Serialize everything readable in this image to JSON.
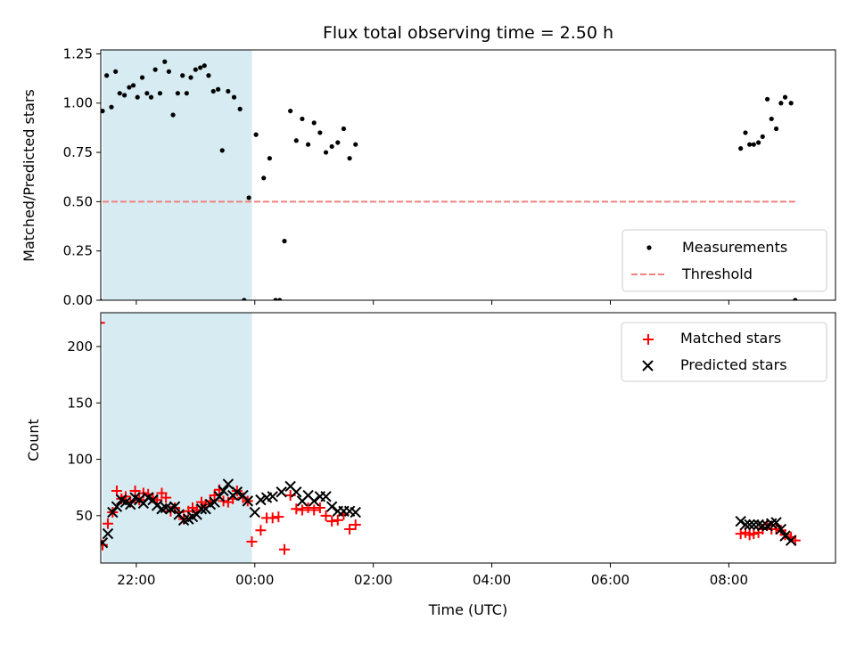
{
  "chart_data": [
    {
      "type": "scatter",
      "title": "Flux total observing time = 2.50 h",
      "xlabel": "",
      "ylabel": "Matched/Predicted stars",
      "x_unit": "hours since 2024-01-01 00:00 UTC",
      "xlim": [
        -2.6,
        9.8
      ],
      "ylim": [
        0,
        1.27
      ],
      "yticks": [
        0.0,
        0.25,
        0.5,
        0.75,
        1.0,
        1.25
      ],
      "ytick_labels": [
        "0.00",
        "0.25",
        "0.50",
        "0.75",
        "1.00",
        "1.25"
      ],
      "xticks": [
        -2,
        0,
        2,
        4,
        6,
        8
      ],
      "xtick_labels": [
        "",
        "",
        "",
        "",
        "",
        ""
      ],
      "grid": false,
      "legend": "bottom-right",
      "shaded_interval": {
        "from": -2.57,
        "to": -0.05,
        "color": "#add8e6"
      },
      "series": [
        {
          "name": "Measurements",
          "marker": "dot",
          "color": "#000000",
          "points": [
            [
              -2.62,
              0.0
            ],
            [
              -2.57,
              0.96
            ],
            [
              -2.5,
              1.14
            ],
            [
              -2.42,
              0.98
            ],
            [
              -2.35,
              1.16
            ],
            [
              -2.28,
              1.05
            ],
            [
              -2.2,
              1.04
            ],
            [
              -2.12,
              1.08
            ],
            [
              -2.05,
              1.09
            ],
            [
              -1.98,
              1.03
            ],
            [
              -1.9,
              1.13
            ],
            [
              -1.82,
              1.05
            ],
            [
              -1.75,
              1.03
            ],
            [
              -1.68,
              1.17
            ],
            [
              -1.6,
              1.05
            ],
            [
              -1.52,
              1.21
            ],
            [
              -1.45,
              1.16
            ],
            [
              -1.38,
              0.94
            ],
            [
              -1.3,
              1.05
            ],
            [
              -1.22,
              1.14
            ],
            [
              -1.15,
              1.05
            ],
            [
              -1.08,
              1.13
            ],
            [
              -1.0,
              1.17
            ],
            [
              -0.92,
              1.18
            ],
            [
              -0.85,
              1.19
            ],
            [
              -0.78,
              1.14
            ],
            [
              -0.7,
              1.06
            ],
            [
              -0.62,
              1.07
            ],
            [
              -0.55,
              0.76
            ],
            [
              -0.45,
              1.06
            ],
            [
              -0.35,
              1.03
            ],
            [
              -0.25,
              0.97
            ],
            [
              -0.18,
              0.0
            ],
            [
              -0.1,
              0.52
            ],
            [
              0.02,
              0.84
            ],
            [
              0.15,
              0.62
            ],
            [
              0.25,
              0.72
            ],
            [
              0.35,
              0.0
            ],
            [
              0.42,
              0.0
            ],
            [
              0.5,
              0.3
            ],
            [
              0.6,
              0.96
            ],
            [
              0.7,
              0.81
            ],
            [
              0.8,
              0.92
            ],
            [
              0.9,
              0.79
            ],
            [
              1.0,
              0.9
            ],
            [
              1.1,
              0.85
            ],
            [
              1.2,
              0.75
            ],
            [
              1.3,
              0.78
            ],
            [
              1.4,
              0.8
            ],
            [
              1.5,
              0.87
            ],
            [
              1.6,
              0.72
            ],
            [
              1.7,
              0.79
            ],
            [
              8.2,
              0.77
            ],
            [
              8.28,
              0.85
            ],
            [
              8.35,
              0.79
            ],
            [
              8.42,
              0.79
            ],
            [
              8.5,
              0.8
            ],
            [
              8.57,
              0.83
            ],
            [
              8.65,
              1.02
            ],
            [
              8.72,
              0.92
            ],
            [
              8.8,
              0.87
            ],
            [
              8.88,
              1.0
            ],
            [
              8.95,
              1.03
            ],
            [
              9.05,
              1.0
            ],
            [
              9.12,
              0.0
            ]
          ]
        },
        {
          "name": "Threshold",
          "marker": "dashed-line",
          "color": "#f08080",
          "points": [
            [
              -2.57,
              0.5
            ],
            [
              9.12,
              0.5
            ]
          ]
        }
      ]
    },
    {
      "type": "scatter",
      "title": "",
      "xlabel": "Time (UTC)",
      "ylabel": "Count",
      "x_unit": "hours since 2024-01-01 00:00 UTC",
      "xlim": [
        -2.6,
        9.8
      ],
      "ylim": [
        8,
        230
      ],
      "yticks": [
        50,
        100,
        150,
        200
      ],
      "ytick_labels": [
        "50",
        "100",
        "150",
        "200"
      ],
      "xticks": [
        -2,
        0,
        2,
        4,
        6,
        8
      ],
      "xtick_labels": [
        "22:00",
        "00:00",
        "02:00",
        "04:00",
        "06:00",
        "08:00"
      ],
      "grid": false,
      "legend": "top-right",
      "shaded_interval": {
        "from": -2.57,
        "to": -0.05,
        "color": "#add8e6"
      },
      "series": [
        {
          "name": "Matched stars",
          "marker": "plus",
          "color": "#ff0000",
          "points": [
            [
              -2.62,
              221
            ],
            [
              -2.57,
              24
            ],
            [
              -2.48,
              43
            ],
            [
              -2.4,
              53
            ],
            [
              -2.33,
              72
            ],
            [
              -2.25,
              65
            ],
            [
              -2.18,
              67
            ],
            [
              -2.1,
              62
            ],
            [
              -2.02,
              72
            ],
            [
              -1.95,
              64
            ],
            [
              -1.88,
              70
            ],
            [
              -1.8,
              69
            ],
            [
              -1.72,
              66
            ],
            [
              -1.65,
              64
            ],
            [
              -1.57,
              70
            ],
            [
              -1.5,
              66
            ],
            [
              -1.42,
              54
            ],
            [
              -1.35,
              57
            ],
            [
              -1.28,
              53
            ],
            [
              -1.2,
              47
            ],
            [
              -1.12,
              54
            ],
            [
              -1.05,
              57
            ],
            [
              -0.98,
              55
            ],
            [
              -0.9,
              62
            ],
            [
              -0.83,
              60
            ],
            [
              -0.75,
              63
            ],
            [
              -0.68,
              68
            ],
            [
              -0.6,
              73
            ],
            [
              -0.53,
              63
            ],
            [
              -0.45,
              62
            ],
            [
              -0.37,
              65
            ],
            [
              -0.3,
              72
            ],
            [
              -0.2,
              66
            ],
            [
              -0.12,
              63
            ],
            [
              -0.05,
              27
            ],
            [
              0.1,
              37
            ],
            [
              0.2,
              48
            ],
            [
              0.3,
              48
            ],
            [
              0.4,
              49
            ],
            [
              0.5,
              20
            ],
            [
              0.6,
              68
            ],
            [
              0.7,
              56
            ],
            [
              0.8,
              55
            ],
            [
              0.9,
              57
            ],
            [
              1.0,
              55
            ],
            [
              1.1,
              57
            ],
            [
              1.2,
              50
            ],
            [
              1.3,
              45
            ],
            [
              1.4,
              46
            ],
            [
              1.5,
              51
            ],
            [
              1.6,
              38
            ],
            [
              1.7,
              42
            ],
            [
              8.2,
              34
            ],
            [
              8.28,
              35
            ],
            [
              8.35,
              33
            ],
            [
              8.42,
              34
            ],
            [
              8.5,
              35
            ],
            [
              8.57,
              38
            ],
            [
              8.65,
              42
            ],
            [
              8.72,
              38
            ],
            [
              8.8,
              38
            ],
            [
              8.88,
              37
            ],
            [
              8.95,
              33
            ],
            [
              9.05,
              31
            ],
            [
              9.12,
              28
            ]
          ]
        },
        {
          "name": "Predicted stars",
          "marker": "x",
          "color": "#000000",
          "points": [
            [
              -2.57,
              26
            ],
            [
              -2.48,
              34
            ],
            [
              -2.4,
              53
            ],
            [
              -2.33,
              58
            ],
            [
              -2.25,
              64
            ],
            [
              -2.18,
              62
            ],
            [
              -2.1,
              60
            ],
            [
              -2.02,
              66
            ],
            [
              -1.95,
              64
            ],
            [
              -1.88,
              61
            ],
            [
              -1.8,
              66
            ],
            [
              -1.72,
              64
            ],
            [
              -1.65,
              59
            ],
            [
              -1.57,
              56
            ],
            [
              -1.5,
              57
            ],
            [
              -1.42,
              56
            ],
            [
              -1.35,
              58
            ],
            [
              -1.28,
              51
            ],
            [
              -1.2,
              46
            ],
            [
              -1.12,
              47
            ],
            [
              -1.05,
              49
            ],
            [
              -0.98,
              51
            ],
            [
              -0.9,
              56
            ],
            [
              -0.83,
              56
            ],
            [
              -0.75,
              60
            ],
            [
              -0.68,
              62
            ],
            [
              -0.6,
              67
            ],
            [
              -0.53,
              72
            ],
            [
              -0.45,
              78
            ],
            [
              -0.37,
              68
            ],
            [
              -0.3,
              71
            ],
            [
              -0.2,
              68
            ],
            [
              -0.12,
              63
            ],
            [
              0.0,
              53
            ],
            [
              0.1,
              64
            ],
            [
              0.2,
              66
            ],
            [
              0.3,
              67
            ],
            [
              0.45,
              71
            ],
            [
              0.6,
              76
            ],
            [
              0.7,
              71
            ],
            [
              0.8,
              63
            ],
            [
              0.9,
              68
            ],
            [
              1.0,
              63
            ],
            [
              1.1,
              67
            ],
            [
              1.2,
              67
            ],
            [
              1.3,
              58
            ],
            [
              1.4,
              54
            ],
            [
              1.5,
              54
            ],
            [
              1.6,
              54
            ],
            [
              1.7,
              53
            ],
            [
              8.2,
              45
            ],
            [
              8.28,
              42
            ],
            [
              8.35,
              42
            ],
            [
              8.42,
              42
            ],
            [
              8.5,
              42
            ],
            [
              8.57,
              41
            ],
            [
              8.65,
              41
            ],
            [
              8.72,
              43
            ],
            [
              8.8,
              44
            ],
            [
              8.88,
              38
            ],
            [
              8.95,
              32
            ],
            [
              9.05,
              28
            ]
          ]
        }
      ]
    }
  ]
}
